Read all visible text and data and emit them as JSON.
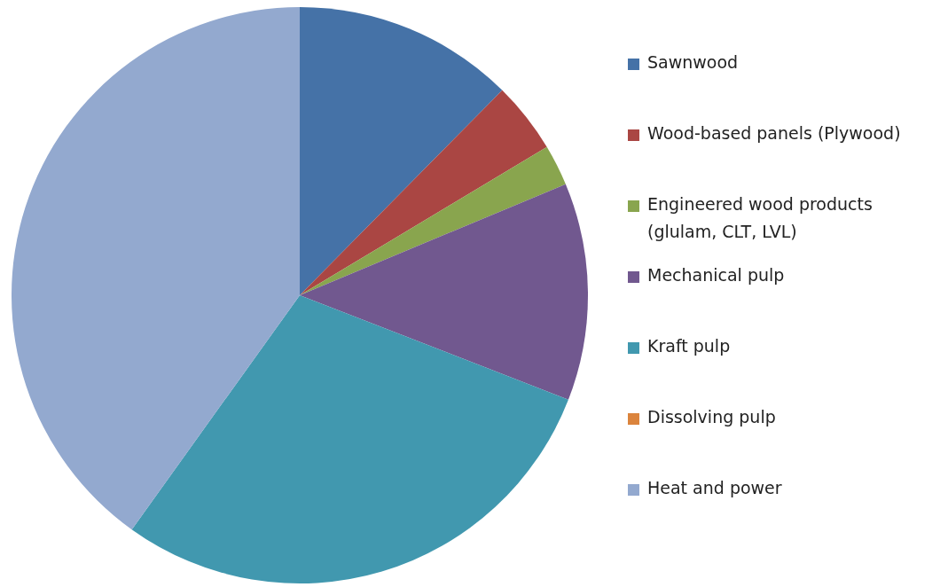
{
  "chart_data": {
    "type": "pie",
    "categories": [
      "Sawnwood",
      "Wood-based panels (Plywood)",
      "Engineered wood products (glulam, CLT, LVL)",
      "Mechanical pulp",
      "Kraft pulp",
      "Dissolving pulp",
      "Heat and power"
    ],
    "values": [
      12.4,
      4.0,
      2.3,
      12.2,
      29.0,
      0,
      40.1
    ],
    "colors": [
      "#4572a7",
      "#aa4643",
      "#89a54e",
      "#71588f",
      "#4198af",
      "#db843d",
      "#93a9cf"
    ],
    "legend": "right"
  }
}
